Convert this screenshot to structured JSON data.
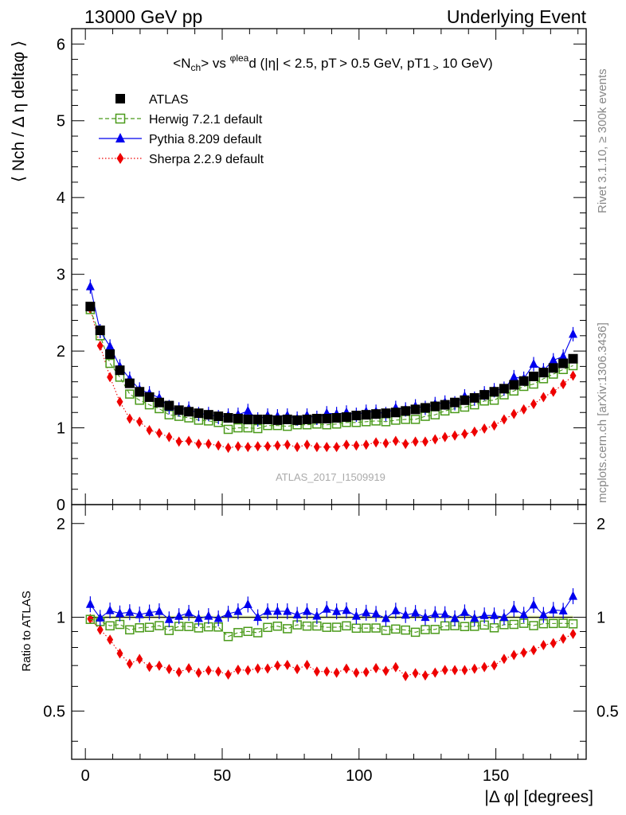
{
  "header": {
    "left": "13000 GeV pp",
    "right": "Underlying Event",
    "rivet_note": "Rivet 3.1.10, ≥ 300k events",
    "source_note": "mcplots.cern.ch [arXiv:1306.3436]"
  },
  "chart_data": {
    "type": "line",
    "title": "<Nch> vs φlead (|η| < 2.5, pT > 0.5 GeV, pT1 > 10 GeV)",
    "analysis_label": "ATLAS_2017_I1509919",
    "xlabel": "|Δ φ| [degrees]",
    "ylabel": "⟨ Nch / Δ η deltaφ ⟩",
    "ratio_ylabel": "Ratio to ATLAS",
    "xlim": [
      -5,
      183
    ],
    "ylim": [
      0,
      6.2
    ],
    "ratio_ylim": [
      0.35,
      2.3
    ],
    "x_ticks": [
      "0",
      "50",
      "100",
      "150"
    ],
    "y_ticks": [
      "0",
      "1",
      "2",
      "3",
      "4",
      "5",
      "6"
    ],
    "ratio_ticks": [
      "0.5",
      "1",
      "2"
    ],
    "x": [
      1.8,
      5.4,
      9.0,
      12.6,
      16.2,
      19.8,
      23.4,
      27.0,
      30.6,
      34.2,
      37.8,
      41.4,
      45.0,
      48.6,
      52.2,
      55.8,
      59.4,
      63.0,
      66.6,
      70.2,
      73.8,
      77.4,
      81.0,
      84.6,
      88.2,
      91.8,
      95.4,
      99.0,
      102.6,
      106.2,
      109.8,
      113.4,
      117.0,
      120.6,
      124.2,
      127.8,
      131.4,
      135.0,
      138.6,
      142.2,
      145.8,
      149.4,
      153.0,
      156.6,
      160.2,
      163.8,
      167.4,
      171.0,
      174.6,
      178.2
    ],
    "series": [
      {
        "name": "ATLAS",
        "color": "#000000",
        "marker": "square-filled",
        "values": [
          2.58,
          2.27,
          1.96,
          1.75,
          1.58,
          1.47,
          1.4,
          1.33,
          1.29,
          1.23,
          1.21,
          1.19,
          1.17,
          1.15,
          1.13,
          1.12,
          1.11,
          1.11,
          1.11,
          1.1,
          1.11,
          1.1,
          1.11,
          1.12,
          1.12,
          1.13,
          1.14,
          1.16,
          1.17,
          1.18,
          1.19,
          1.2,
          1.22,
          1.24,
          1.26,
          1.28,
          1.3,
          1.33,
          1.36,
          1.39,
          1.43,
          1.47,
          1.51,
          1.56,
          1.61,
          1.67,
          1.72,
          1.78,
          1.84,
          1.9
        ]
      },
      {
        "name": "Herwig 7.2.1 default",
        "color": "#4a9a1a",
        "marker": "square-open",
        "values": [
          2.54,
          2.2,
          1.84,
          1.66,
          1.44,
          1.36,
          1.3,
          1.25,
          1.17,
          1.15,
          1.13,
          1.1,
          1.09,
          1.07,
          0.98,
          1.0,
          1.0,
          0.99,
          1.03,
          1.03,
          1.02,
          1.04,
          1.04,
          1.05,
          1.04,
          1.05,
          1.07,
          1.07,
          1.08,
          1.09,
          1.08,
          1.1,
          1.11,
          1.11,
          1.15,
          1.17,
          1.22,
          1.25,
          1.27,
          1.3,
          1.35,
          1.36,
          1.43,
          1.48,
          1.54,
          1.57,
          1.64,
          1.7,
          1.76,
          1.81
        ]
      },
      {
        "name": "Pythia 8.209 default",
        "color": "#0000ee",
        "marker": "triangle-filled",
        "values": [
          2.84,
          2.26,
          2.06,
          1.8,
          1.64,
          1.5,
          1.45,
          1.39,
          1.27,
          1.24,
          1.25,
          1.18,
          1.18,
          1.14,
          1.16,
          1.17,
          1.22,
          1.11,
          1.16,
          1.15,
          1.16,
          1.12,
          1.16,
          1.13,
          1.19,
          1.18,
          1.2,
          1.17,
          1.21,
          1.21,
          1.18,
          1.26,
          1.24,
          1.28,
          1.26,
          1.31,
          1.33,
          1.32,
          1.41,
          1.38,
          1.45,
          1.49,
          1.51,
          1.66,
          1.64,
          1.83,
          1.75,
          1.88,
          1.93,
          2.22
        ]
      },
      {
        "name": "Sherpa 2.2.9 default",
        "color": "#ee0000",
        "marker": "diamond-filled",
        "values": [
          2.55,
          2.07,
          1.66,
          1.34,
          1.12,
          1.08,
          0.97,
          0.93,
          0.88,
          0.82,
          0.83,
          0.79,
          0.79,
          0.77,
          0.74,
          0.76,
          0.75,
          0.76,
          0.76,
          0.77,
          0.78,
          0.75,
          0.78,
          0.75,
          0.75,
          0.75,
          0.78,
          0.77,
          0.78,
          0.81,
          0.8,
          0.83,
          0.79,
          0.82,
          0.82,
          0.85,
          0.88,
          0.9,
          0.92,
          0.95,
          0.99,
          1.03,
          1.11,
          1.18,
          1.24,
          1.31,
          1.4,
          1.47,
          1.57,
          1.68
        ]
      }
    ],
    "legend_position": "top-left",
    "grid": false
  }
}
